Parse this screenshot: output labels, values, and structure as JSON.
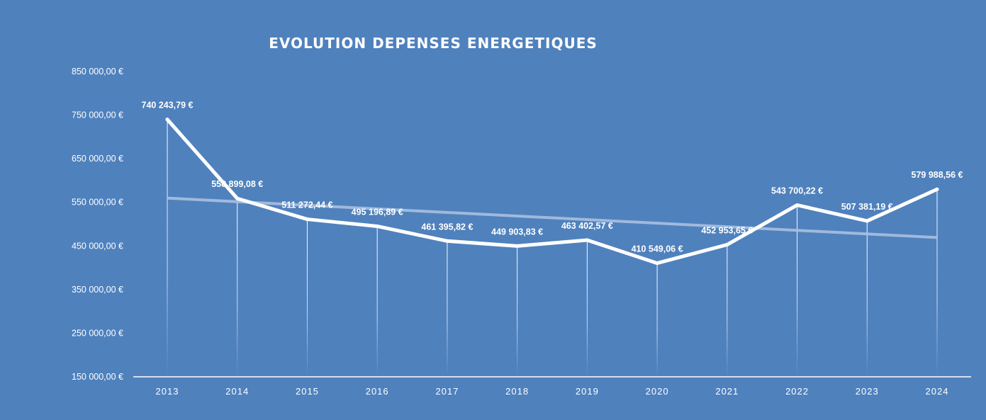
{
  "chart_data": {
    "type": "line",
    "title": "EVOLUTION DEPENSES ENERGETIQUES",
    "categories": [
      "2013",
      "2014",
      "2015",
      "2016",
      "2017",
      "2018",
      "2019",
      "2020",
      "2021",
      "2022",
      "2023",
      "2024"
    ],
    "values": [
      740243.79,
      558899.08,
      511272.44,
      495196.89,
      461395.82,
      449903.83,
      463402.57,
      410549.06,
      452953.65,
      543700.22,
      507381.19,
      579988.56
    ],
    "data_labels": [
      "740 243,79 €",
      "558 899,08 €",
      "511 272,44 €",
      "495 196,89 €",
      "461 395,82 €",
      "449 903,83 €",
      "463 402,57 €",
      "410 549,06 €",
      "452 953,65 €",
      "543 700,22 €",
      "507 381,19 €",
      "579 988,56 €"
    ],
    "ylim": [
      150000,
      850000
    ],
    "yticks": [
      150000,
      250000,
      350000,
      450000,
      550000,
      650000,
      750000,
      850000
    ],
    "ytick_labels": [
      "150 000,00 €",
      "250 000,00 €",
      "350 000,00 €",
      "450 000,00 €",
      "550 000,00 €",
      "650 000,00 €",
      "750 000,00 €",
      "850 000,00 €"
    ],
    "trendline": "linear",
    "drop_lines": true,
    "grid": false,
    "legend": "none",
    "colors": {
      "background": "#4f81bd",
      "series": "#ffffff",
      "trendline": "#a9bfdf"
    }
  }
}
